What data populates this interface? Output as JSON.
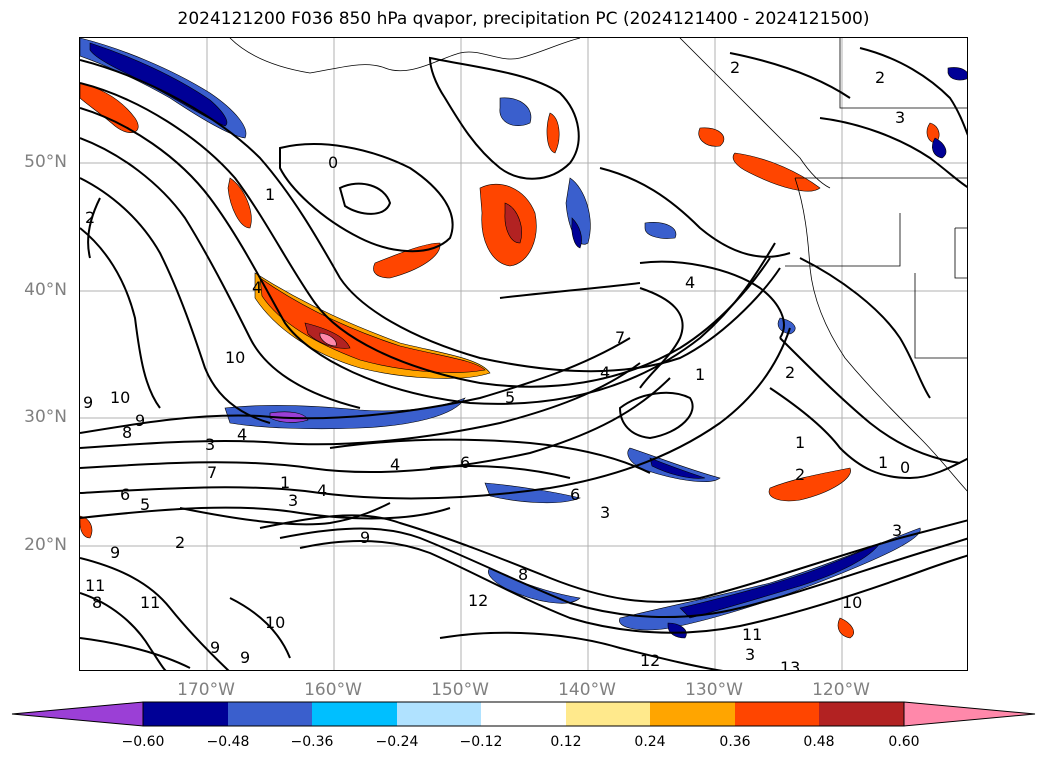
{
  "title": "2024121200 F036 850 hPa qvapor, precipitation PC (2024121400 - 2024121500)",
  "map": {
    "lat_ticks": [
      "50°N",
      "40°N",
      "30°N",
      "20°N"
    ],
    "lon_ticks": [
      "170°W",
      "160°W",
      "150°W",
      "140°W",
      "130°W",
      "120°W"
    ],
    "gridlines": true,
    "contour_color": "#000000",
    "contour_labels": [
      "0",
      "1",
      "2",
      "2",
      "2",
      "3",
      "4",
      "4",
      "4",
      "7",
      "10",
      "10",
      "9",
      "9",
      "8",
      "3",
      "4",
      "7",
      "1",
      "3",
      "4",
      "6",
      "6",
      "5",
      "3",
      "4",
      "1",
      "2",
      "1",
      "2",
      "1",
      "0",
      "3",
      "8",
      "12",
      "10",
      "11",
      "9",
      "9",
      "10",
      "12",
      "11",
      "3",
      "13",
      "5",
      "2",
      "9",
      "6",
      "11",
      "8",
      "9"
    ]
  },
  "colorbar": {
    "colors": [
      "#9b3fd6",
      "#000096",
      "#3a5fcd",
      "#00bfff",
      "#b0e2ff",
      "#ffffff",
      "#ffe98c",
      "#ffa500",
      "#ff4500",
      "#b22222",
      "#ff88aa"
    ],
    "ticks": [
      "−0.60",
      "−0.48",
      "−0.36",
      "−0.24",
      "−0.12",
      "0.12",
      "0.24",
      "0.36",
      "0.48",
      "0.60"
    ],
    "extend": "both"
  }
}
